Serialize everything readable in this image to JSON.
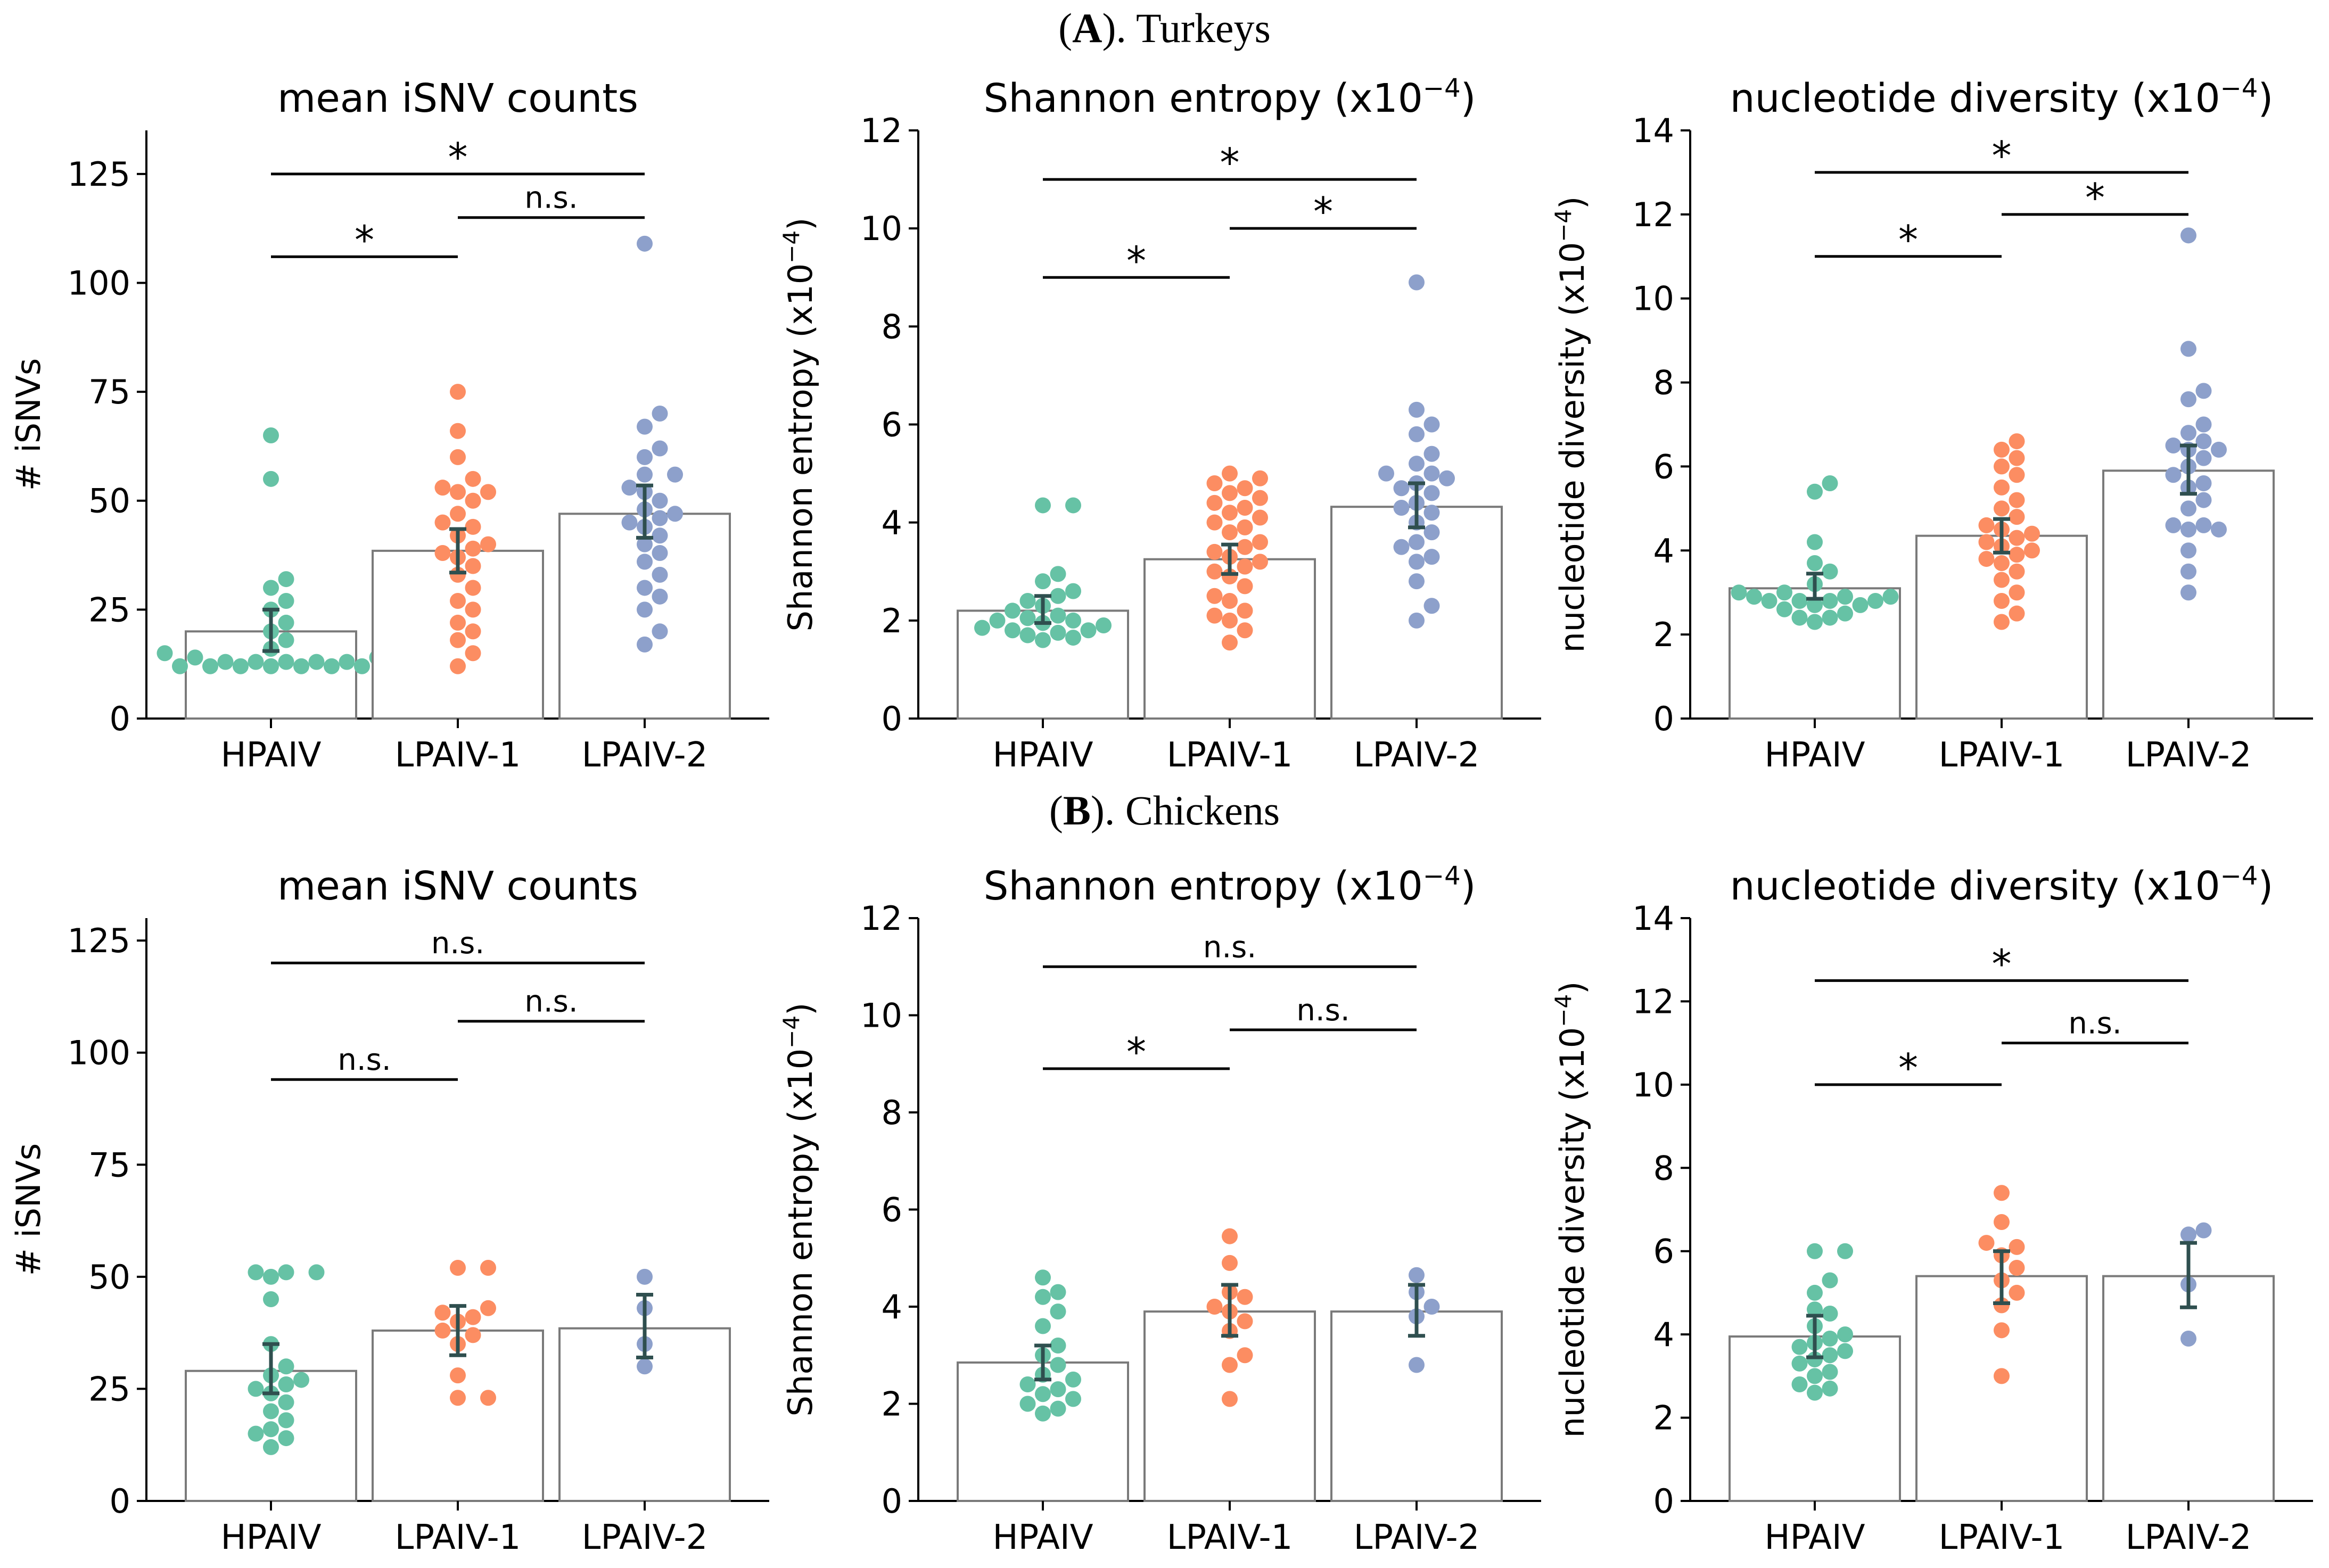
{
  "figure": {
    "rows": [
      {
        "id": "A",
        "title_letter": "A",
        "title_rest": "). Turkeys",
        "title_open": "("
      },
      {
        "id": "B",
        "title_letter": "B",
        "title_rest": "). Chickens",
        "title_open": "("
      }
    ]
  },
  "colors": {
    "HPAIV": "#66c2a5",
    "LPAIV-1": "#fc8d62",
    "LPAIV-2": "#8da0cb",
    "errorbar": "#2f4f4f",
    "bar_edge": "#7a7a7a"
  },
  "chart_data": [
    {
      "id": "A1",
      "row": "A",
      "col": 0,
      "type": "bar",
      "title": "mean iSNV counts",
      "title_sup": "",
      "ylabel": "# iSNVs",
      "ylabel_sup": "",
      "ylim": [
        0,
        135
      ],
      "yticks": [
        0,
        25,
        50,
        75,
        100,
        125
      ],
      "categories": [
        "HPAIV",
        "LPAIV-1",
        "LPAIV-2"
      ],
      "values": [
        20,
        38.5,
        47
      ],
      "errors": [
        [
          15.5,
          25
        ],
        [
          33.5,
          43.5
        ],
        [
          41.5,
          53.5
        ]
      ],
      "points": [
        [
          13,
          12,
          13,
          12,
          12,
          14,
          13,
          12,
          13,
          12,
          13,
          12,
          14,
          15,
          16,
          18,
          20,
          22,
          25,
          27,
          30,
          32,
          12,
          55,
          65
        ],
        [
          12,
          15,
          18,
          20,
          22,
          25,
          27,
          30,
          33,
          35,
          37,
          38,
          39,
          40,
          42,
          44,
          45,
          47,
          50,
          52,
          52,
          53,
          55,
          60,
          66,
          75
        ],
        [
          17,
          20,
          25,
          28,
          30,
          33,
          36,
          38,
          40,
          42,
          44,
          45,
          46,
          47,
          48,
          50,
          52,
          53,
          56,
          56,
          60,
          62,
          67,
          70,
          109
        ]
      ],
      "comparisons": [
        {
          "from": 0,
          "to": 2,
          "label": "*",
          "y": 125
        },
        {
          "from": 1,
          "to": 2,
          "label": "n.s.",
          "y": 115
        },
        {
          "from": 0,
          "to": 1,
          "label": "*",
          "y": 106
        }
      ]
    },
    {
      "id": "A2",
      "row": "A",
      "col": 1,
      "type": "bar",
      "title": "Shannon entropy (x10",
      "title_sup": "−4",
      "ylabel": "Shannon entropy (x10",
      "ylabel_sup": "−4",
      "ylim": [
        0,
        12
      ],
      "yticks": [
        0,
        2,
        4,
        6,
        8,
        10,
        12
      ],
      "categories": [
        "HPAIV",
        "LPAIV-1",
        "LPAIV-2"
      ],
      "values": [
        2.2,
        3.25,
        4.32
      ],
      "errors": [
        [
          1.95,
          2.5
        ],
        [
          2.95,
          3.55
        ],
        [
          3.9,
          4.8
        ]
      ],
      "points": [
        [
          1.6,
          1.65,
          1.7,
          1.75,
          1.8,
          1.8,
          1.85,
          1.9,
          1.95,
          2.0,
          2.0,
          2.05,
          2.1,
          2.2,
          2.3,
          2.4,
          2.5,
          2.6,
          2.8,
          2.95,
          4.35,
          4.35
        ],
        [
          1.55,
          1.8,
          2.0,
          2.1,
          2.2,
          2.4,
          2.5,
          2.7,
          2.9,
          3.0,
          3.1,
          3.2,
          3.3,
          3.4,
          3.5,
          3.6,
          3.8,
          3.9,
          4.0,
          4.1,
          4.2,
          4.3,
          4.4,
          4.5,
          4.6,
          4.7,
          4.8,
          4.9,
          5.0
        ],
        [
          2.0,
          2.3,
          2.8,
          3.2,
          3.3,
          3.5,
          3.6,
          3.8,
          4.0,
          4.2,
          4.3,
          4.4,
          4.6,
          4.7,
          4.8,
          4.9,
          5.0,
          5.0,
          5.2,
          5.4,
          5.8,
          6.0,
          6.3,
          8.9
        ]
      ],
      "comparisons": [
        {
          "from": 0,
          "to": 2,
          "label": "*",
          "y": 11
        },
        {
          "from": 1,
          "to": 2,
          "label": "*",
          "y": 10
        },
        {
          "from": 0,
          "to": 1,
          "label": "*",
          "y": 9
        }
      ]
    },
    {
      "id": "A3",
      "row": "A",
      "col": 2,
      "type": "bar",
      "title": "nucleotide diversity (x10",
      "title_sup": "−4",
      "ylabel": "nucleotide diversity (x10",
      "ylabel_sup": "−4",
      "ylim": [
        0,
        14
      ],
      "yticks": [
        0,
        2,
        4,
        6,
        8,
        10,
        12,
        14
      ],
      "categories": [
        "HPAIV",
        "LPAIV-1",
        "LPAIV-2"
      ],
      "values": [
        3.1,
        4.35,
        5.9
      ],
      "errors": [
        [
          2.85,
          3.45
        ],
        [
          3.95,
          4.75
        ],
        [
          5.35,
          6.5
        ]
      ],
      "points": [
        [
          2.3,
          2.4,
          2.4,
          2.5,
          2.6,
          2.7,
          2.7,
          2.8,
          2.8,
          2.8,
          2.8,
          2.9,
          2.9,
          2.9,
          3.0,
          3.0,
          3.2,
          3.5,
          3.7,
          4.2,
          5.4,
          5.6
        ],
        [
          2.3,
          2.5,
          2.8,
          3.0,
          3.3,
          3.5,
          3.7,
          3.8,
          3.9,
          4.0,
          4.1,
          4.2,
          4.3,
          4.4,
          4.5,
          4.6,
          4.8,
          5.0,
          5.2,
          5.5,
          5.8,
          6.0,
          6.2,
          6.4,
          6.6
        ],
        [
          3.0,
          3.5,
          4.0,
          4.5,
          4.5,
          4.6,
          4.6,
          5.0,
          5.2,
          5.5,
          5.6,
          5.8,
          6.0,
          6.2,
          6.4,
          6.4,
          6.5,
          6.6,
          6.8,
          7.0,
          7.6,
          7.8,
          8.8,
          11.5
        ]
      ],
      "comparisons": [
        {
          "from": 0,
          "to": 2,
          "label": "*",
          "y": 13
        },
        {
          "from": 1,
          "to": 2,
          "label": "*",
          "y": 12
        },
        {
          "from": 0,
          "to": 1,
          "label": "*",
          "y": 11
        }
      ]
    },
    {
      "id": "B1",
      "row": "B",
      "col": 0,
      "type": "bar",
      "title": "mean iSNV counts",
      "title_sup": "",
      "ylabel": "# iSNVs",
      "ylabel_sup": "",
      "ylim": [
        0,
        130
      ],
      "yticks": [
        0,
        25,
        50,
        75,
        100,
        125
      ],
      "categories": [
        "HPAIV",
        "LPAIV-1",
        "LPAIV-2"
      ],
      "values": [
        29,
        38,
        38.5
      ],
      "errors": [
        [
          24,
          35
        ],
        [
          32.5,
          43.5
        ],
        [
          32,
          46
        ]
      ],
      "points": [
        [
          12,
          14,
          15,
          16,
          18,
          20,
          22,
          24,
          25,
          26,
          27,
          28,
          30,
          35,
          45,
          50,
          51,
          51,
          51
        ],
        [
          23,
          23,
          28,
          35,
          37,
          38,
          40,
          41,
          42,
          43,
          52,
          52
        ],
        [
          30,
          35,
          43,
          50
        ]
      ],
      "comparisons": [
        {
          "from": 0,
          "to": 2,
          "label": "n.s.",
          "y": 120
        },
        {
          "from": 1,
          "to": 2,
          "label": "n.s.",
          "y": 107
        },
        {
          "from": 0,
          "to": 1,
          "label": "n.s.",
          "y": 94
        }
      ]
    },
    {
      "id": "B2",
      "row": "B",
      "col": 1,
      "type": "bar",
      "title": "Shannon entropy (x10",
      "title_sup": "−4",
      "ylabel": "Shannon entropy (x10",
      "ylabel_sup": "−4",
      "ylim": [
        0,
        12
      ],
      "yticks": [
        0,
        2,
        4,
        6,
        8,
        10,
        12
      ],
      "categories": [
        "HPAIV",
        "LPAIV-1",
        "LPAIV-2"
      ],
      "values": [
        2.85,
        3.9,
        3.9
      ],
      "errors": [
        [
          2.5,
          3.2
        ],
        [
          3.4,
          4.45
        ],
        [
          3.4,
          4.45
        ]
      ],
      "points": [
        [
          1.8,
          1.9,
          2.0,
          2.1,
          2.2,
          2.3,
          2.4,
          2.5,
          2.6,
          2.8,
          3.0,
          3.2,
          3.6,
          3.9,
          4.2,
          4.3,
          4.6
        ],
        [
          2.1,
          2.8,
          3.0,
          3.5,
          3.7,
          3.9,
          4.0,
          4.2,
          4.3,
          4.9,
          5.45
        ],
        [
          2.8,
          3.8,
          4.0,
          4.3,
          4.65
        ]
      ],
      "comparisons": [
        {
          "from": 0,
          "to": 2,
          "label": "n.s.",
          "y": 11
        },
        {
          "from": 1,
          "to": 2,
          "label": "n.s.",
          "y": 9.7
        },
        {
          "from": 0,
          "to": 1,
          "label": "*",
          "y": 8.9
        }
      ]
    },
    {
      "id": "B3",
      "row": "B",
      "col": 2,
      "type": "bar",
      "title": "nucleotide diversity (x10",
      "title_sup": "−4",
      "ylabel": "nucleotide diversity (x10",
      "ylabel_sup": "−4",
      "ylim": [
        0,
        14
      ],
      "yticks": [
        0,
        2,
        4,
        6,
        8,
        10,
        12,
        14
      ],
      "categories": [
        "HPAIV",
        "LPAIV-1",
        "LPAIV-2"
      ],
      "values": [
        3.95,
        5.4,
        5.4
      ],
      "errors": [
        [
          3.45,
          4.45
        ],
        [
          4.75,
          6.0
        ],
        [
          4.65,
          6.2
        ]
      ],
      "points": [
        [
          2.6,
          2.7,
          2.8,
          3.0,
          3.1,
          3.3,
          3.4,
          3.5,
          3.6,
          3.7,
          3.8,
          3.9,
          4.0,
          4.2,
          4.5,
          4.6,
          5.0,
          5.3,
          6.0,
          6.0
        ],
        [
          3.0,
          4.1,
          4.7,
          5.0,
          5.3,
          5.6,
          5.9,
          6.1,
          6.2,
          6.7,
          7.4
        ],
        [
          3.9,
          5.2,
          6.4,
          6.5
        ]
      ],
      "comparisons": [
        {
          "from": 0,
          "to": 2,
          "label": "*",
          "y": 12.5
        },
        {
          "from": 1,
          "to": 2,
          "label": "n.s.",
          "y": 11
        },
        {
          "from": 0,
          "to": 1,
          "label": "*",
          "y": 10
        }
      ]
    }
  ]
}
